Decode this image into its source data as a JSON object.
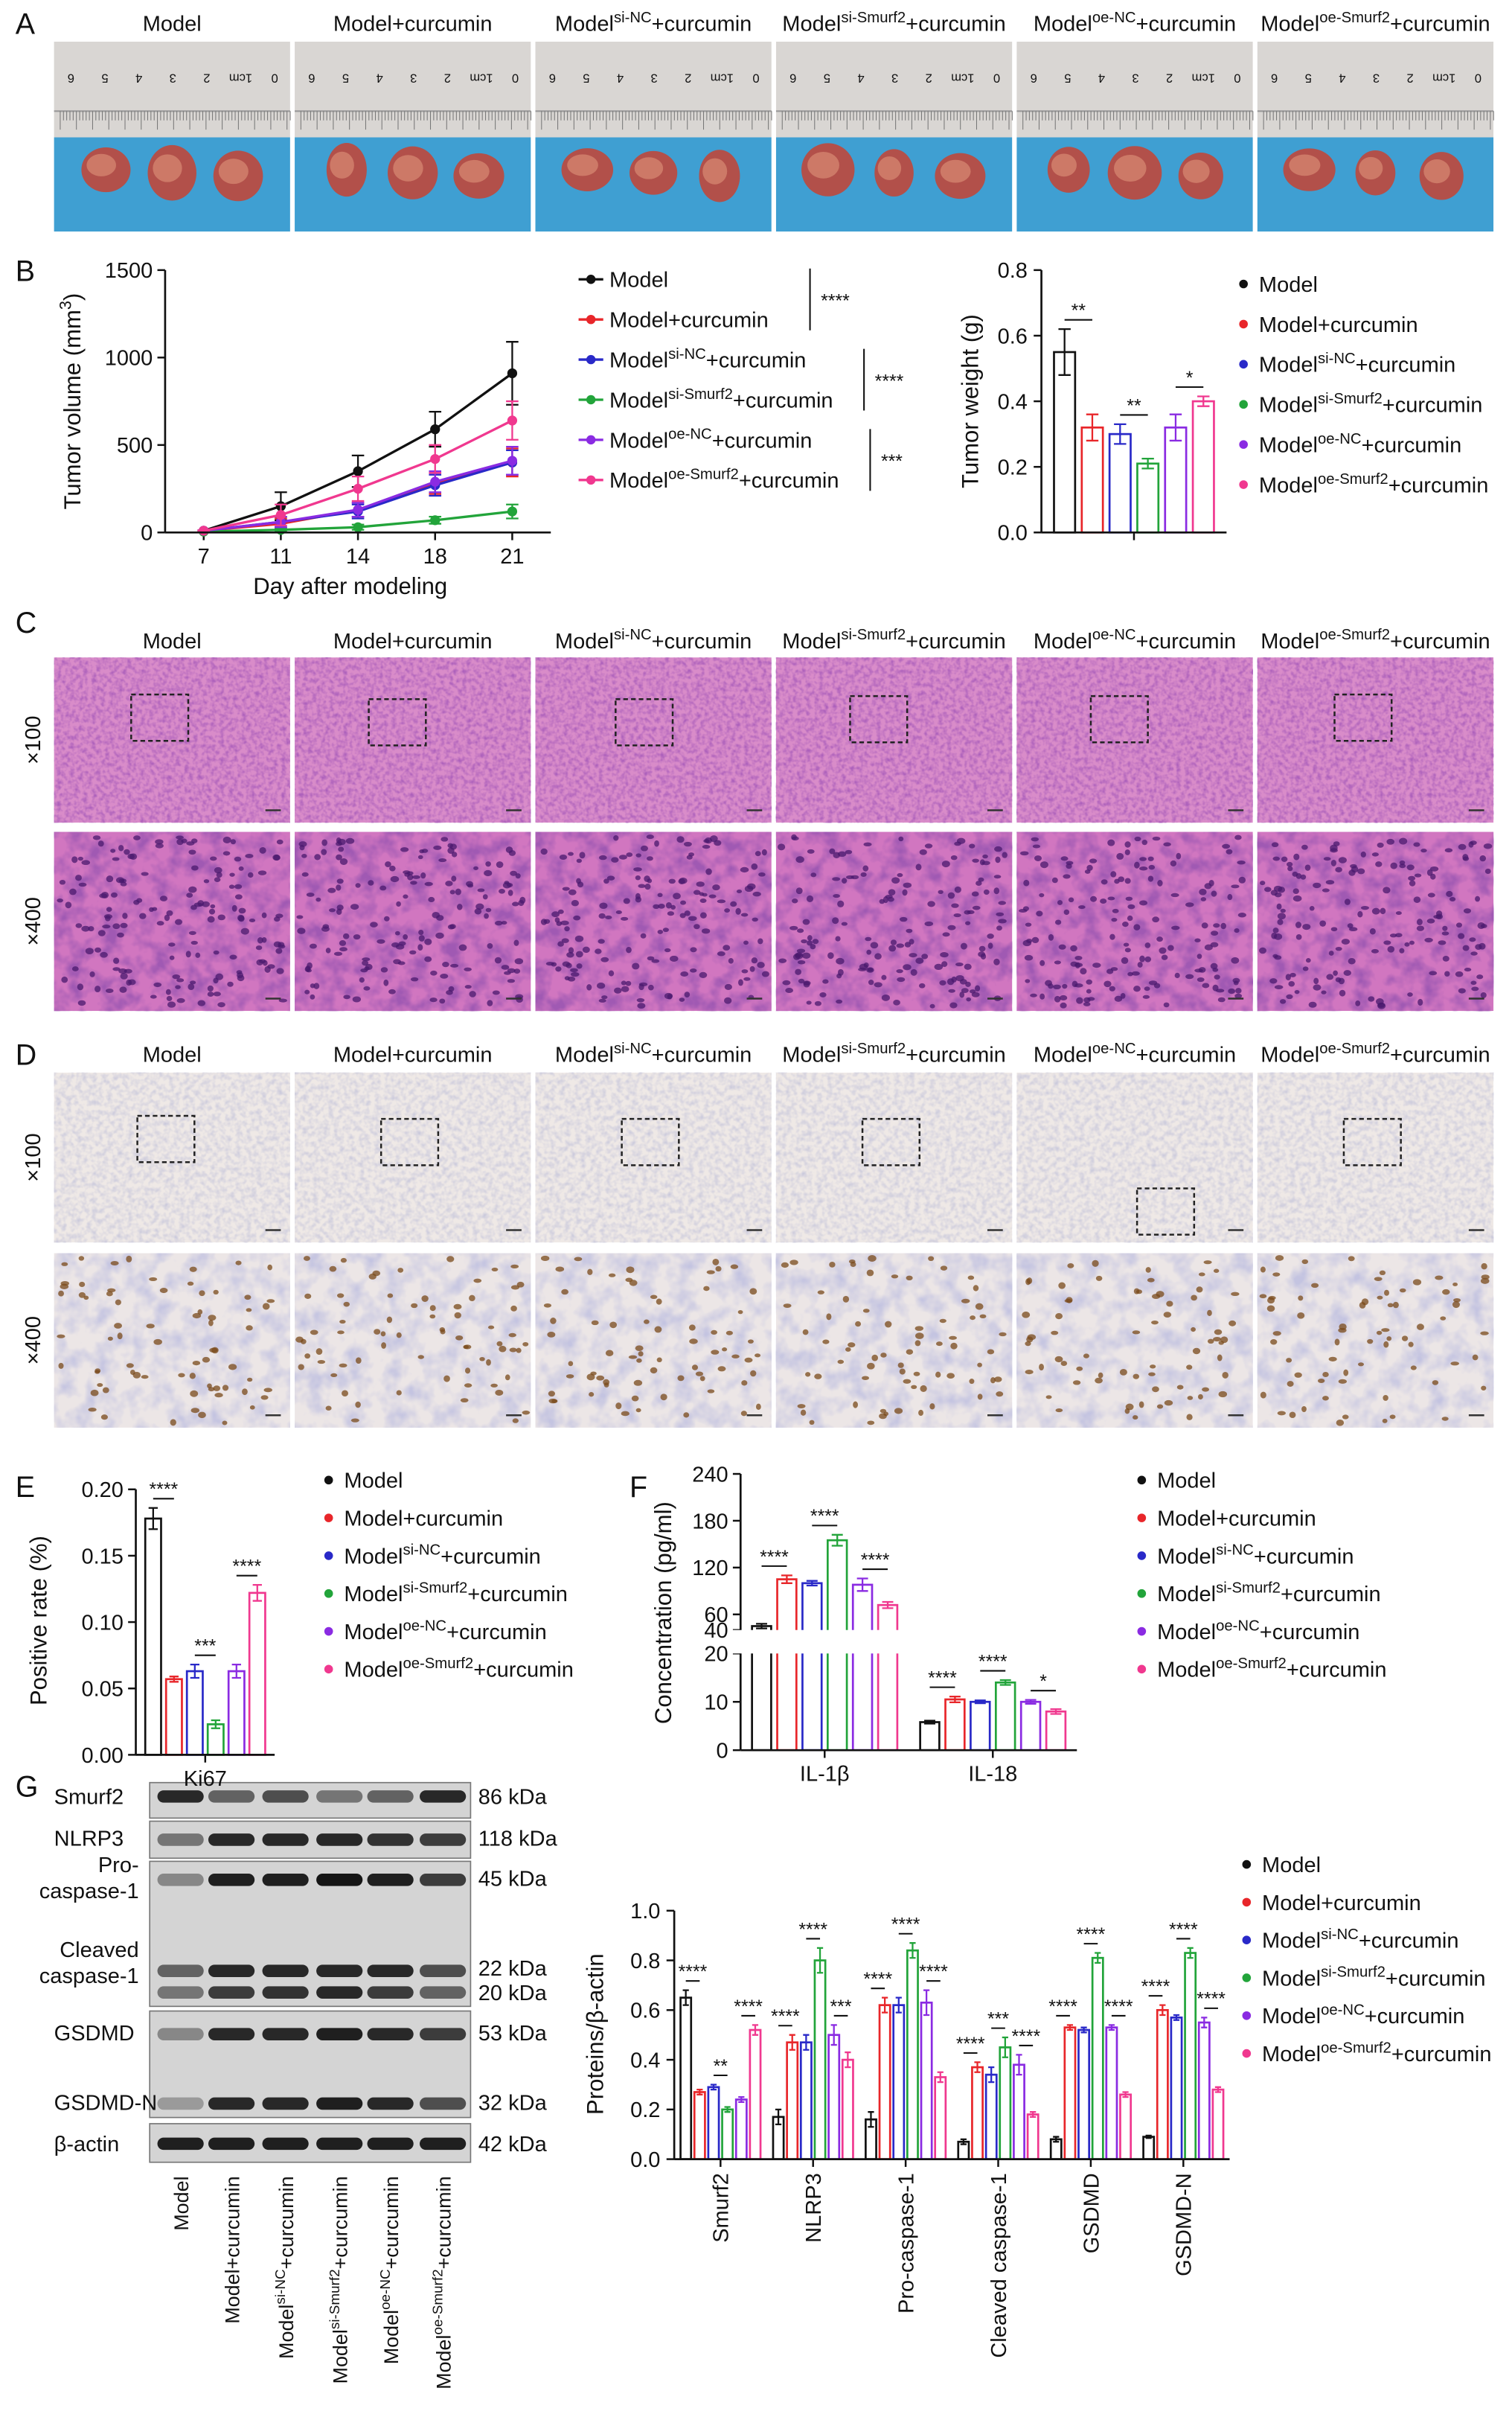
{
  "panel_labels": [
    "A",
    "B",
    "C",
    "D",
    "E",
    "F",
    "G"
  ],
  "groups": [
    [
      "Model"
    ],
    [
      "Model+curcumin"
    ],
    [
      "Model",
      "si-NC",
      "+curcumin"
    ],
    [
      "Model",
      "si-Smurf2",
      "+curcumin"
    ],
    [
      "Model",
      "oe-NC",
      "+curcumin"
    ],
    [
      "Model",
      "oe-Smurf2",
      "+curcumin"
    ]
  ],
  "magnifications": [
    "×100",
    "×400"
  ],
  "ruler_labels": [
    "0",
    "1cm",
    "2",
    "3",
    "4",
    "5",
    "6"
  ],
  "blot": {
    "proteins": [
      [
        "Smurf2"
      ],
      [
        "NLRP3"
      ],
      [
        "Pro-",
        "caspase-1"
      ],
      [
        "Cleaved",
        "caspase-1"
      ],
      [
        "GSDMD"
      ],
      [
        "GSDMD-N"
      ],
      [
        "β-actin"
      ]
    ],
    "sizes": [
      "86 kDa",
      "118 kDa",
      "45 kDa",
      "22 kDa",
      "20 kDa",
      "53 kDa",
      "32 kDa",
      "42 kDa"
    ]
  },
  "chart_data": [
    {
      "type": "line",
      "ylabel": [
        "Tumor volume (mm",
        "3",
        ")"
      ],
      "xlabel": "Day after modeling",
      "categories": [
        "7",
        "11",
        "14",
        "18",
        "21"
      ],
      "ylim": [
        0,
        1500
      ],
      "yticks": [
        0,
        500,
        1000,
        1500
      ],
      "series": [
        {
          "name": [
            "Model"
          ],
          "color": "#111111",
          "values": [
            10,
            150,
            350,
            590,
            910
          ],
          "errors": [
            2,
            80,
            90,
            100,
            180
          ]
        },
        {
          "name": [
            "Model+curcumin"
          ],
          "color": "#e8262a",
          "values": [
            10,
            50,
            130,
            280,
            400
          ],
          "errors": [
            2,
            30,
            40,
            60,
            80
          ]
        },
        {
          "name": [
            "Model",
            "si-NC",
            "+curcumin"
          ],
          "color": "#2929c8",
          "values": [
            10,
            60,
            120,
            270,
            400
          ],
          "errors": [
            2,
            30,
            40,
            60,
            70
          ]
        },
        {
          "name": [
            "Model",
            "si-Smurf2",
            "+curcumin"
          ],
          "color": "#22a43a",
          "values": [
            5,
            15,
            30,
            70,
            120
          ],
          "errors": [
            1,
            10,
            15,
            20,
            40
          ]
        },
        {
          "name": [
            "Model",
            "oe-NC",
            "+curcumin"
          ],
          "color": "#8a2be2",
          "values": [
            10,
            60,
            130,
            290,
            410
          ],
          "errors": [
            2,
            30,
            40,
            60,
            80
          ]
        },
        {
          "name": [
            "Model",
            "oe-Smurf2",
            "+curcumin"
          ],
          "color": "#f0388f",
          "values": [
            10,
            100,
            250,
            420,
            640
          ],
          "errors": [
            2,
            60,
            70,
            80,
            110
          ]
        }
      ],
      "significance": [
        "****",
        "****",
        "***"
      ]
    },
    {
      "type": "bar",
      "ylabel": "Tumor weight (g)",
      "categories": [
        null
      ],
      "ylim": [
        0,
        0.8
      ],
      "yticks": [
        {
          "value": 0,
          "label": "0.0"
        },
        0.2,
        0.4,
        0.6,
        0.8
      ],
      "series": [
        {
          "name": [
            "Model"
          ],
          "color": "#111111",
          "values": [
            0.55
          ],
          "errors": [
            0.07
          ]
        },
        {
          "name": [
            "Model+curcumin"
          ],
          "color": "#e8262a",
          "values": [
            0.32
          ],
          "errors": [
            0.04
          ]
        },
        {
          "name": [
            "Model",
            "si-NC",
            "+curcumin"
          ],
          "color": "#2929c8",
          "values": [
            0.3
          ],
          "errors": [
            0.03
          ]
        },
        {
          "name": [
            "Model",
            "si-Smurf2",
            "+curcumin"
          ],
          "color": "#22a43a",
          "values": [
            0.21
          ],
          "errors": [
            0.015
          ]
        },
        {
          "name": [
            "Model",
            "oe-NC",
            "+curcumin"
          ],
          "color": "#8a2be2",
          "values": [
            0.32
          ],
          "errors": [
            0.04
          ]
        },
        {
          "name": [
            "Model",
            "oe-Smurf2",
            "+curcumin"
          ],
          "color": "#f0388f",
          "values": [
            0.4
          ],
          "errors": [
            0.015
          ]
        }
      ],
      "significance": [
        [
          "**",
          "**",
          "*"
        ]
      ]
    },
    {
      "type": "bar",
      "ylabel": "Positive rate (%)",
      "categories": [
        "Ki67"
      ],
      "ylim": [
        0,
        0.2
      ],
      "yticks": [
        {
          "value": 0,
          "label": "0.00"
        },
        {
          "value": 0.05,
          "label": "0.05"
        },
        {
          "value": 0.1,
          "label": "0.10"
        },
        {
          "value": 0.15,
          "label": "0.15"
        },
        {
          "value": 0.2,
          "label": "0.20"
        }
      ],
      "series": [
        {
          "name": [
            "Model"
          ],
          "color": "#111111",
          "values": [
            0.178
          ],
          "errors": [
            0.008
          ]
        },
        {
          "name": [
            "Model+curcumin"
          ],
          "color": "#e8262a",
          "values": [
            0.057
          ],
          "errors": [
            0.002
          ]
        },
        {
          "name": [
            "Model",
            "si-NC",
            "+curcumin"
          ],
          "color": "#2929c8",
          "values": [
            0.063
          ],
          "errors": [
            0.005
          ]
        },
        {
          "name": [
            "Model",
            "si-Smurf2",
            "+curcumin"
          ],
          "color": "#22a43a",
          "values": [
            0.023
          ],
          "errors": [
            0.003
          ]
        },
        {
          "name": [
            "Model",
            "oe-NC",
            "+curcumin"
          ],
          "color": "#8a2be2",
          "values": [
            0.063
          ],
          "errors": [
            0.005
          ]
        },
        {
          "name": [
            "Model",
            "oe-Smurf2",
            "+curcumin"
          ],
          "color": "#f0388f",
          "values": [
            0.122
          ],
          "errors": [
            0.006
          ]
        }
      ],
      "significance": [
        [
          "****",
          "***",
          "****"
        ]
      ]
    },
    {
      "type": "bar",
      "ylabel": "Concentration (pg/ml)",
      "categories": [
        "IL-1β",
        "IL-18"
      ],
      "ylim": [
        0,
        240
      ],
      "ybreak": [
        20,
        40
      ],
      "yticks": [
        0,
        10,
        20,
        40,
        60,
        120,
        180,
        240
      ],
      "series": [
        {
          "name": [
            "Model"
          ],
          "color": "#111111",
          "values": [
            45,
            5.8
          ],
          "errors": [
            3,
            0.3
          ]
        },
        {
          "name": [
            "Model+curcumin"
          ],
          "color": "#e8262a",
          "values": [
            105,
            10.5
          ],
          "errors": [
            5,
            0.6
          ]
        },
        {
          "name": [
            "Model",
            "si-NC",
            "+curcumin"
          ],
          "color": "#2929c8",
          "values": [
            100,
            10
          ],
          "errors": [
            3,
            0.3
          ]
        },
        {
          "name": [
            "Model",
            "si-Smurf2",
            "+curcumin"
          ],
          "color": "#22a43a",
          "values": [
            155,
            14
          ],
          "errors": [
            7,
            0.5
          ]
        },
        {
          "name": [
            "Model",
            "oe-NC",
            "+curcumin"
          ],
          "color": "#8a2be2",
          "values": [
            98,
            10
          ],
          "errors": [
            8,
            0.4
          ]
        },
        {
          "name": [
            "Model",
            "oe-Smurf2",
            "+curcumin"
          ],
          "color": "#f0388f",
          "values": [
            72,
            8
          ],
          "errors": [
            4,
            0.5
          ]
        }
      ],
      "significance": [
        [
          "****",
          "****",
          "****"
        ],
        [
          "****",
          "****",
          "*"
        ]
      ]
    },
    {
      "type": "bar",
      "ylabel": "Proteins/β-actin",
      "categories": [
        "Smurf2",
        "NLRP3",
        "Pro-caspase-1",
        "Cleaved caspase-1",
        "GSDMD",
        "GSDMD-N"
      ],
      "ylim": [
        0,
        1
      ],
      "yticks": [
        {
          "value": 0,
          "label": "0.0"
        },
        0.2,
        0.4,
        0.6,
        0.8,
        {
          "value": 1,
          "label": "1.0"
        }
      ],
      "series": [
        {
          "name": [
            "Model"
          ],
          "color": "#111111",
          "values": [
            0.65,
            0.17,
            0.16,
            0.07,
            0.08,
            0.09
          ],
          "errors": [
            0.03,
            0.03,
            0.03,
            0.01,
            0.01,
            0.005
          ]
        },
        {
          "name": [
            "Model+curcumin"
          ],
          "color": "#e8262a",
          "values": [
            0.27,
            0.47,
            0.62,
            0.37,
            0.53,
            0.6
          ],
          "errors": [
            0.01,
            0.03,
            0.03,
            0.02,
            0.01,
            0.02
          ]
        },
        {
          "name": [
            "Model",
            "si-NC",
            "+curcumin"
          ],
          "color": "#2929c8",
          "values": [
            0.29,
            0.47,
            0.62,
            0.34,
            0.52,
            0.57
          ],
          "errors": [
            0.01,
            0.03,
            0.03,
            0.03,
            0.01,
            0.01
          ]
        },
        {
          "name": [
            "Model",
            "si-Smurf2",
            "+curcumin"
          ],
          "color": "#22a43a",
          "values": [
            0.2,
            0.8,
            0.84,
            0.45,
            0.81,
            0.83
          ],
          "errors": [
            0.01,
            0.05,
            0.03,
            0.04,
            0.02,
            0.02
          ]
        },
        {
          "name": [
            "Model",
            "oe-NC",
            "+curcumin"
          ],
          "color": "#8a2be2",
          "values": [
            0.24,
            0.5,
            0.63,
            0.38,
            0.53,
            0.55
          ],
          "errors": [
            0.01,
            0.04,
            0.05,
            0.04,
            0.01,
            0.02
          ]
        },
        {
          "name": [
            "Model",
            "oe-Smurf2",
            "+curcumin"
          ],
          "color": "#f0388f",
          "values": [
            0.52,
            0.4,
            0.33,
            0.18,
            0.26,
            0.28
          ],
          "errors": [
            0.02,
            0.03,
            0.02,
            0.01,
            0.01,
            0.01
          ]
        }
      ],
      "significance": [
        [
          "****",
          "**",
          "****"
        ],
        [
          "****",
          "****",
          "***"
        ],
        [
          "****",
          "****",
          "****"
        ],
        [
          "****",
          "***",
          "****"
        ],
        [
          "****",
          "****",
          "****"
        ],
        [
          "****",
          "****",
          "****"
        ]
      ]
    }
  ]
}
